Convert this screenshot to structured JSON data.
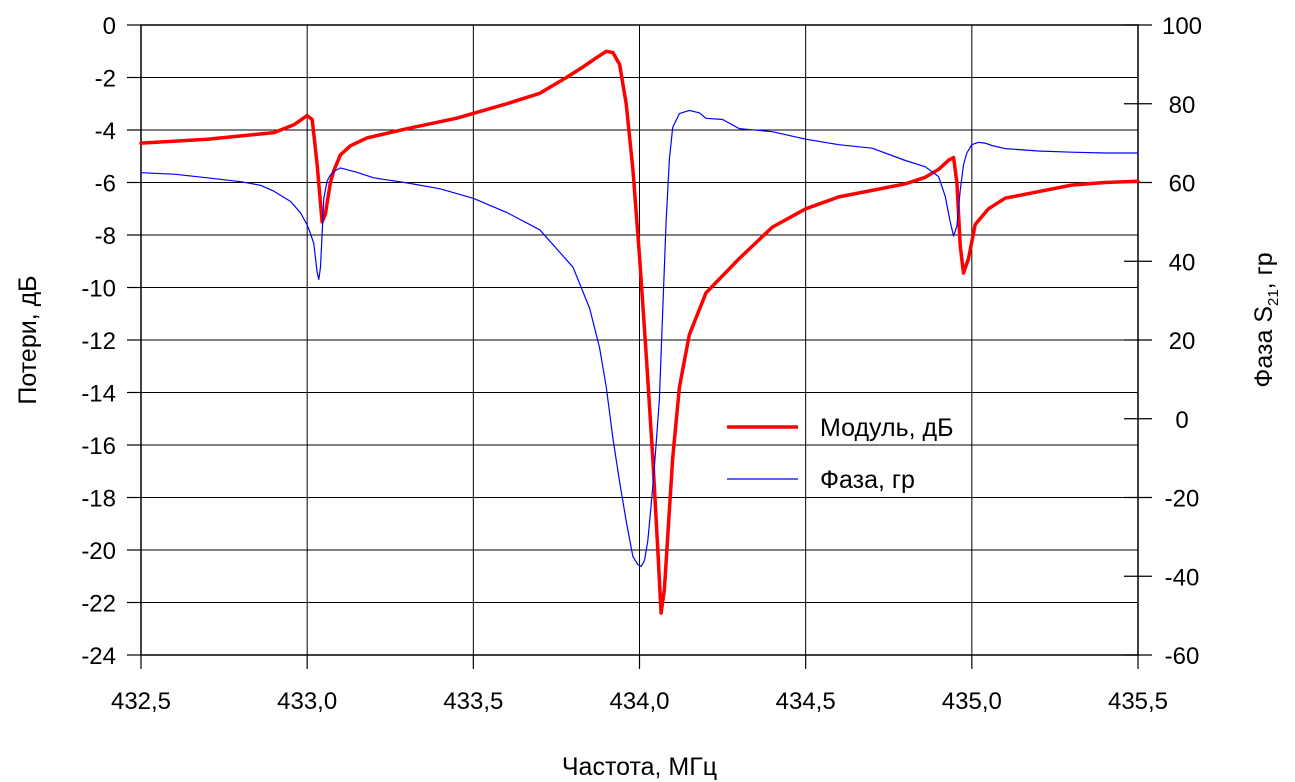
{
  "chart_data": {
    "type": "line",
    "xlabel": "Частота, МГц",
    "ylabel_left": "Потери, дБ",
    "ylabel_right_prefix": "Фаза S",
    "ylabel_right_subscript": "21",
    "ylabel_right_suffix": ", гр",
    "xlim": [
      432.5,
      435.5
    ],
    "ylim_left": [
      -24,
      0
    ],
    "ylim_right": [
      -60,
      100
    ],
    "grid": true,
    "legend_position": "center-right",
    "x_ticks": [
      432.5,
      433.0,
      433.5,
      434.0,
      434.5,
      435.0,
      435.5
    ],
    "x_tick_labels": [
      "432,5",
      "433,0",
      "433,5",
      "434,0",
      "434,5",
      "435,0",
      "435,5"
    ],
    "y_left_ticks": [
      0,
      -2,
      -4,
      -6,
      -8,
      -10,
      -12,
      -14,
      -16,
      -18,
      -20,
      -22,
      -24
    ],
    "y_left_tick_labels": [
      "0",
      "-2",
      "-4",
      "-6",
      "-8",
      "-10",
      "-12",
      "-14",
      "-16",
      "-18",
      "-20",
      "-22",
      "-24"
    ],
    "y_right_ticks": [
      100,
      80,
      60,
      40,
      20,
      0,
      -20,
      -40,
      -60
    ],
    "y_right_tick_labels": [
      "100",
      "80",
      "60",
      "40",
      "20",
      "0",
      "-20",
      "-40",
      "-60"
    ],
    "series": [
      {
        "name": "Модуль, дБ",
        "axis": "left",
        "color": "#ff0000",
        "x": [
          432.5,
          432.7,
          432.9,
          432.96,
          433.0,
          433.015,
          433.03,
          433.045,
          433.055,
          433.07,
          433.08,
          433.1,
          433.13,
          433.18,
          433.3,
          433.45,
          433.6,
          433.7,
          433.78,
          433.83,
          433.87,
          433.9,
          433.92,
          433.94,
          433.96,
          433.98,
          434.0,
          434.02,
          434.04,
          434.055,
          434.065,
          434.075,
          434.085,
          434.1,
          434.12,
          434.15,
          434.2,
          434.3,
          434.4,
          434.5,
          434.6,
          434.7,
          434.8,
          434.86,
          434.9,
          434.93,
          434.945,
          434.955,
          434.965,
          434.975,
          434.99,
          435.01,
          435.05,
          435.1,
          435.2,
          435.3,
          435.4,
          435.5
        ],
        "values": [
          -4.5,
          -4.35,
          -4.1,
          -3.8,
          -3.45,
          -3.6,
          -5.3,
          -7.5,
          -7.2,
          -6.0,
          -5.55,
          -4.95,
          -4.6,
          -4.3,
          -3.95,
          -3.55,
          -3.0,
          -2.6,
          -2.0,
          -1.6,
          -1.25,
          -1.0,
          -1.05,
          -1.5,
          -3.0,
          -5.5,
          -8.8,
          -12.5,
          -16.5,
          -20.0,
          -22.4,
          -21.5,
          -19.5,
          -16.5,
          -13.8,
          -11.8,
          -10.2,
          -8.9,
          -7.7,
          -7.0,
          -6.55,
          -6.3,
          -6.05,
          -5.8,
          -5.5,
          -5.15,
          -5.05,
          -6.0,
          -8.4,
          -9.45,
          -8.9,
          -7.6,
          -7.0,
          -6.6,
          -6.35,
          -6.1,
          -6.0,
          -5.95
        ]
      },
      {
        "name": "Фаза, гр",
        "axis": "right",
        "color": "#0000ff",
        "x": [
          432.5,
          432.6,
          432.7,
          432.8,
          432.86,
          432.9,
          432.95,
          432.98,
          433.0,
          433.01,
          433.02,
          433.03,
          433.035,
          433.04,
          433.05,
          433.06,
          433.07,
          433.08,
          433.1,
          433.15,
          433.2,
          433.3,
          433.4,
          433.5,
          433.6,
          433.7,
          433.8,
          433.85,
          433.88,
          433.9,
          433.92,
          433.94,
          433.96,
          433.98,
          433.995,
          434.005,
          434.015,
          434.025,
          434.035,
          434.045,
          434.06,
          434.07,
          434.08,
          434.09,
          434.1,
          434.12,
          434.15,
          434.18,
          434.2,
          434.25,
          434.3,
          434.4,
          434.5,
          434.6,
          434.7,
          434.8,
          434.86,
          434.9,
          434.92,
          434.935,
          434.945,
          434.955,
          434.965,
          434.975,
          434.985,
          435.0,
          435.02,
          435.04,
          435.06,
          435.1,
          435.2,
          435.3,
          435.4,
          435.5
        ],
        "values": [
          62.5,
          62.1,
          61.2,
          60.2,
          59.3,
          57.8,
          55.2,
          52.3,
          49.2,
          47.0,
          44.5,
          37.2,
          35.4,
          38.5,
          56.0,
          60.4,
          61.9,
          62.8,
          63.7,
          62.6,
          61.2,
          59.9,
          58.4,
          56.0,
          52.4,
          48.0,
          38.5,
          28.0,
          18.0,
          8.0,
          -5.0,
          -16.0,
          -26.0,
          -35.0,
          -37.0,
          -37.5,
          -36.0,
          -31.0,
          -22.0,
          -12.0,
          5.0,
          28.0,
          50.0,
          66.0,
          74.0,
          77.5,
          78.3,
          77.7,
          76.3,
          76.0,
          73.7,
          72.9,
          71.0,
          69.6,
          68.7,
          65.6,
          64.0,
          61.5,
          56.5,
          50.0,
          46.4,
          49.0,
          58.0,
          64.5,
          67.5,
          69.6,
          70.2,
          70.0,
          69.4,
          68.6,
          68.0,
          67.7,
          67.5,
          67.5
        ]
      }
    ]
  }
}
